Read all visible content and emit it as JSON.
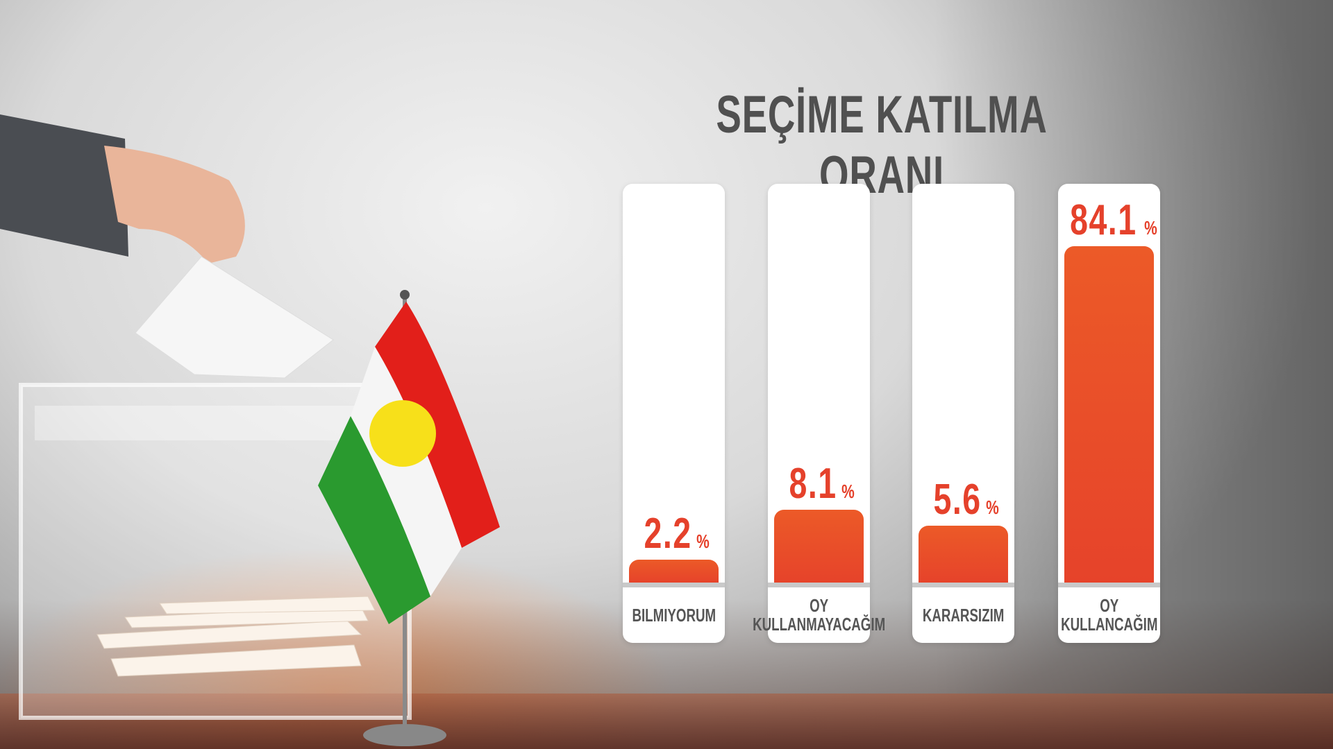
{
  "chart_data": {
    "type": "bar",
    "title": "SEÇİME KATILMA ORANI",
    "categories": [
      "BILMIYORUM",
      "OY\nKULLANMAYACAĞIM",
      "KARARSIZIM",
      "OY\nKULLANCAĞIM"
    ],
    "values": [
      2.2,
      8.1,
      5.6,
      84.1
    ],
    "value_labels": [
      "2.2",
      "8.1",
      "5.6",
      "84.1"
    ],
    "unit": "%",
    "bar_color": "#e8452a",
    "grid": false
  }
}
